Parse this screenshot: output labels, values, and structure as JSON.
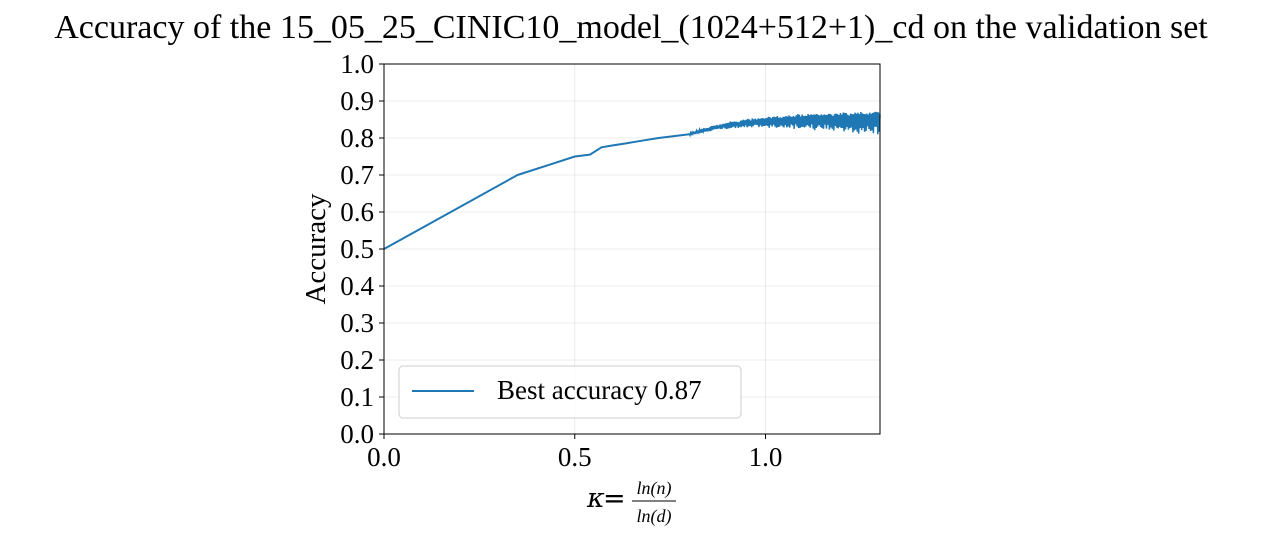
{
  "chart_data": {
    "type": "line",
    "title": "Accuracy of the 15_05_25_CINIC10_model_(1024+512+1)_cd on the validation set",
    "xlabel": {
      "symbol": "κ",
      "equals": "=",
      "numerator": "ln(n)",
      "denominator": "ln(d)"
    },
    "ylabel": "Accuracy",
    "xlim": [
      0.0,
      1.3
    ],
    "ylim": [
      0.0,
      1.0
    ],
    "xticks": [
      0.0,
      0.5,
      1.0
    ],
    "xtick_labels": [
      "0.0",
      "0.5",
      "1.0"
    ],
    "yticks": [
      0.0,
      0.1,
      0.2,
      0.3,
      0.4,
      0.5,
      0.6,
      0.7,
      0.8,
      0.9,
      1.0
    ],
    "ytick_labels": [
      "0.0",
      "0.1",
      "0.2",
      "0.3",
      "0.4",
      "0.5",
      "0.6",
      "0.7",
      "0.8",
      "0.9",
      "1.0"
    ],
    "grid": true,
    "legend_position": "lower-left",
    "series": [
      {
        "name": "Best accuracy 0.87",
        "color": "#1f77b4",
        "x": [
          0.0,
          0.35,
          0.44,
          0.5,
          0.54,
          0.57,
          0.6,
          0.63,
          0.66,
          0.69,
          0.72,
          0.76,
          0.8,
          0.84,
          0.88,
          0.92,
          0.96,
          1.0,
          1.05,
          1.1,
          1.15,
          1.2,
          1.25,
          1.3
        ],
        "y": [
          0.5,
          0.7,
          0.73,
          0.75,
          0.755,
          0.775,
          0.78,
          0.785,
          0.79,
          0.795,
          0.8,
          0.805,
          0.81,
          0.82,
          0.83,
          0.835,
          0.84,
          0.845,
          0.847,
          0.848,
          0.85,
          0.85,
          0.85,
          0.85
        ],
        "noise_band": {
          "x_start": 0.8,
          "x_end": 1.3,
          "y_upper_end": 0.87,
          "y_lower_end": 0.81
        }
      }
    ]
  }
}
